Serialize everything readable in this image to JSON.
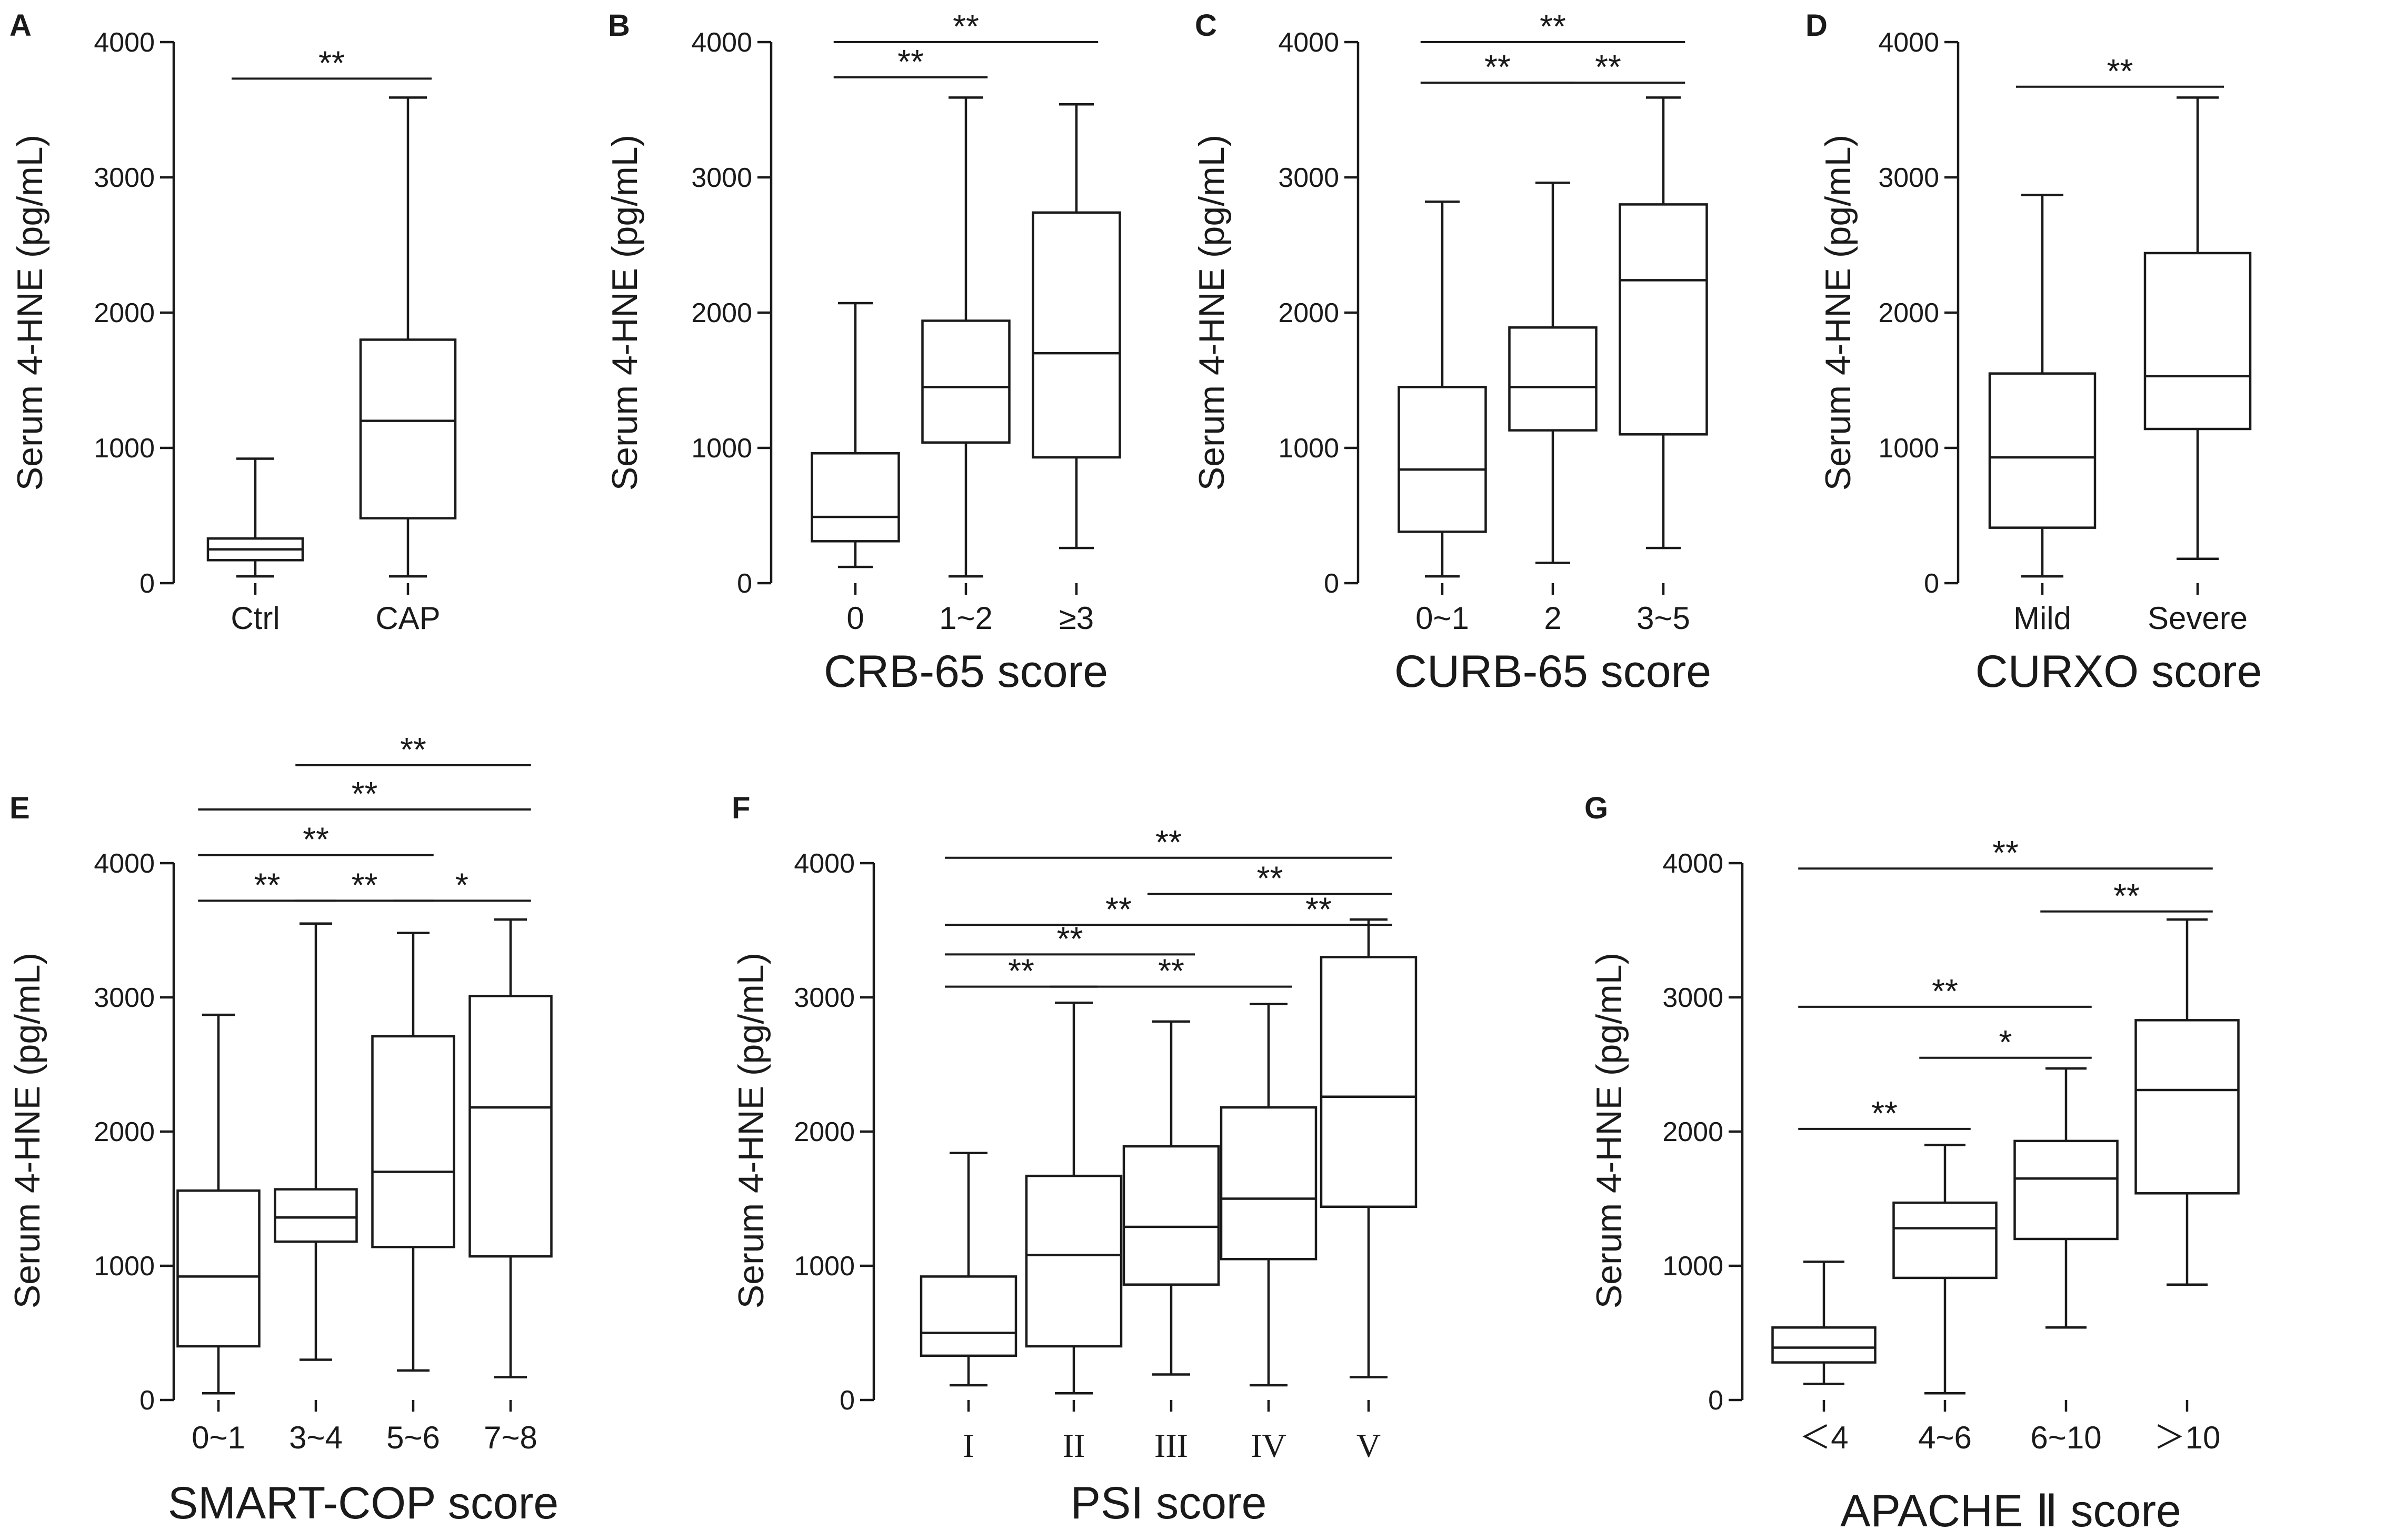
{
  "chart_data": [
    {
      "type": "box",
      "panel": "A",
      "ylabel": "Serum 4-HNE (pg/mL)",
      "xlabel": "",
      "ylim": [
        0,
        4000
      ],
      "yticks": [
        0,
        1000,
        2000,
        3000,
        4000
      ],
      "categories": [
        "Ctrl",
        "CAP"
      ],
      "boxes": [
        {
          "min": 50,
          "q1": 170,
          "median": 250,
          "q3": 330,
          "max": 920
        },
        {
          "min": 50,
          "q1": 480,
          "median": 1200,
          "q3": 1800,
          "max": 3590
        }
      ],
      "significance": [
        {
          "from": 0,
          "to": 1,
          "label": "**",
          "y": 3730
        }
      ]
    },
    {
      "type": "box",
      "panel": "B",
      "ylabel": "Serum 4-HNE (pg/mL)",
      "xlabel": "CRB-65 score",
      "ylim": [
        0,
        4000
      ],
      "yticks": [
        0,
        1000,
        2000,
        3000,
        4000
      ],
      "categories": [
        "0",
        "1~2",
        "≥3"
      ],
      "boxes": [
        {
          "min": 120,
          "q1": 310,
          "median": 490,
          "q3": 960,
          "max": 2070
        },
        {
          "min": 50,
          "q1": 1040,
          "median": 1450,
          "q3": 1940,
          "max": 3590
        },
        {
          "min": 260,
          "q1": 930,
          "median": 1700,
          "q3": 2740,
          "max": 3540
        }
      ],
      "significance": [
        {
          "from": 0,
          "to": 1,
          "label": "**",
          "y": 3740
        },
        {
          "from": 0,
          "to": 2,
          "label": "**",
          "y": 4000
        }
      ]
    },
    {
      "type": "box",
      "panel": "C",
      "ylabel": "Serum 4-HNE (pg/mL)",
      "xlabel": "CURB-65 score",
      "ylim": [
        0,
        4000
      ],
      "yticks": [
        0,
        1000,
        2000,
        3000,
        4000
      ],
      "categories": [
        "0~1",
        "2",
        "3~5"
      ],
      "boxes": [
        {
          "min": 50,
          "q1": 380,
          "median": 840,
          "q3": 1450,
          "max": 2820
        },
        {
          "min": 150,
          "q1": 1130,
          "median": 1450,
          "q3": 1890,
          "max": 2960
        },
        {
          "min": 260,
          "q1": 1100,
          "median": 2240,
          "q3": 2800,
          "max": 3590
        }
      ],
      "significance": [
        {
          "from": 0,
          "to": 1,
          "label": "**",
          "y": 3700
        },
        {
          "from": 1,
          "to": 2,
          "label": "**",
          "y": 3700
        },
        {
          "from": 0,
          "to": 2,
          "label": "**",
          "y": 4000
        }
      ]
    },
    {
      "type": "box",
      "panel": "D",
      "ylabel": "Serum 4-HNE (pg/mL)",
      "xlabel": "CURXO score",
      "ylim": [
        0,
        4000
      ],
      "yticks": [
        0,
        1000,
        2000,
        3000,
        4000
      ],
      "categories": [
        "Mild",
        "Severe"
      ],
      "boxes": [
        {
          "min": 50,
          "q1": 410,
          "median": 930,
          "q3": 1550,
          "max": 2870
        },
        {
          "min": 180,
          "q1": 1140,
          "median": 1530,
          "q3": 2440,
          "max": 3590
        }
      ],
      "significance": [
        {
          "from": 0,
          "to": 1,
          "label": "**",
          "y": 3670
        }
      ]
    },
    {
      "type": "box",
      "panel": "E",
      "ylabel": "Serum 4-HNE (pg/mL)",
      "xlabel": "SMART-COP score",
      "ylim": [
        0,
        4000
      ],
      "yticks": [
        0,
        1000,
        2000,
        3000,
        4000
      ],
      "categories": [
        "0~1",
        "3~4",
        "5~6",
        "7~8"
      ],
      "boxes": [
        {
          "min": 50,
          "q1": 400,
          "median": 920,
          "q3": 1560,
          "max": 2870
        },
        {
          "min": 300,
          "q1": 1180,
          "median": 1360,
          "q3": 1570,
          "max": 3550
        },
        {
          "min": 220,
          "q1": 1140,
          "median": 1700,
          "q3": 2710,
          "max": 3480
        },
        {
          "min": 170,
          "q1": 1070,
          "median": 2180,
          "q3": 3010,
          "max": 3580
        }
      ],
      "significance": [
        {
          "from": 0,
          "to": 1,
          "label": "**",
          "y": 3720
        },
        {
          "from": 1,
          "to": 2,
          "label": "**",
          "y": 3720
        },
        {
          "from": 2,
          "to": 3,
          "label": "*",
          "y": 3720
        },
        {
          "from": 0,
          "to": 2,
          "label": "**",
          "y": 4060
        },
        {
          "from": 0,
          "to": 3,
          "label": "**",
          "y": 4400
        },
        {
          "from": 1,
          "to": 3,
          "label": "**",
          "y": 4730
        }
      ]
    },
    {
      "type": "box",
      "panel": "F",
      "ylabel": "Serum 4-HNE (pg/mL)",
      "xlabel": "PSI score",
      "ylim": [
        0,
        4000
      ],
      "yticks": [
        0,
        1000,
        2000,
        3000,
        4000
      ],
      "categories": [
        "I",
        "II",
        "III",
        "IV",
        "V"
      ],
      "boxes": [
        {
          "min": 110,
          "q1": 330,
          "median": 500,
          "q3": 920,
          "max": 1840
        },
        {
          "min": 50,
          "q1": 400,
          "median": 1080,
          "q3": 1670,
          "max": 2960
        },
        {
          "min": 190,
          "q1": 860,
          "median": 1290,
          "q3": 1890,
          "max": 2820
        },
        {
          "min": 110,
          "q1": 1050,
          "median": 1500,
          "q3": 2180,
          "max": 2950
        },
        {
          "min": 170,
          "q1": 1440,
          "median": 2260,
          "q3": 3300,
          "max": 3580
        }
      ],
      "significance": [
        {
          "from": 0,
          "to": 1,
          "label": "**",
          "y": 3080
        },
        {
          "from": 1,
          "to": 3,
          "label": "**",
          "y": 3080
        },
        {
          "from": 0,
          "to": 2,
          "label": "**",
          "y": 3320
        },
        {
          "from": 0,
          "to": 3,
          "label": "**",
          "y": 3540
        },
        {
          "from": 3,
          "to": 4,
          "label": "**",
          "y": 3540
        },
        {
          "from": 2,
          "to": 4,
          "label": "**",
          "y": 3770
        },
        {
          "from": 0,
          "to": 4,
          "label": "**",
          "y": 4040
        }
      ]
    },
    {
      "type": "box",
      "panel": "G",
      "ylabel": "Serum 4-HNE (pg/mL)",
      "xlabel": "APACHE Ⅱ score",
      "ylim": [
        0,
        4000
      ],
      "yticks": [
        0,
        1000,
        2000,
        3000,
        4000
      ],
      "categories": [
        "＜4",
        "4~6",
        "6~10",
        "＞10"
      ],
      "boxes": [
        {
          "min": 120,
          "q1": 280,
          "median": 390,
          "q3": 540,
          "max": 1030
        },
        {
          "min": 50,
          "q1": 910,
          "median": 1280,
          "q3": 1470,
          "max": 1900
        },
        {
          "min": 540,
          "q1": 1200,
          "median": 1650,
          "q3": 1930,
          "max": 2470
        },
        {
          "min": 860,
          "q1": 1540,
          "median": 2310,
          "q3": 2830,
          "max": 3580
        }
      ],
      "significance": [
        {
          "from": 0,
          "to": 1,
          "label": "**",
          "y": 2020
        },
        {
          "from": 1,
          "to": 2,
          "label": "*",
          "y": 2550
        },
        {
          "from": 0,
          "to": 2,
          "label": "**",
          "y": 2930
        },
        {
          "from": 2,
          "to": 3,
          "label": "**",
          "y": 3640
        },
        {
          "from": 0,
          "to": 3,
          "label": "**",
          "y": 3960
        }
      ]
    }
  ]
}
